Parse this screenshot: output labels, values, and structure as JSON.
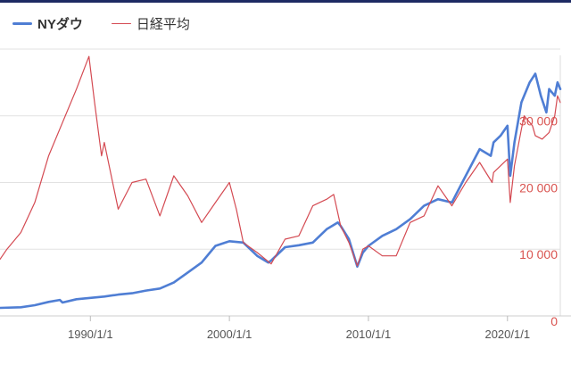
{
  "colors": {
    "nydow": "#4f7ed4",
    "nikkei": "#d44a52",
    "axis_right": "#d9534f",
    "grid": "#e2e2e2"
  },
  "chart_data": {
    "type": "line",
    "title": "",
    "xlabel": "",
    "ylabel": "",
    "xlim": [
      1983.5,
      2023.8
    ],
    "ylim": [
      0,
      42000
    ],
    "grid": true,
    "legend_position": "top-left",
    "x_ticks": [
      {
        "label": "1990/1/1",
        "x": 1990
      },
      {
        "label": "2000/1/1",
        "x": 2000
      },
      {
        "label": "2010/1/1",
        "x": 2010
      },
      {
        "label": "2020/1/1",
        "x": 2020
      }
    ],
    "y_ticks": [
      {
        "label": "0",
        "y": 0
      },
      {
        "label": "10 000",
        "y": 10000
      },
      {
        "label": "20 000",
        "y": 20000
      },
      {
        "label": "30 000",
        "y": 30000
      }
    ],
    "series": [
      {
        "name": "NYダウ",
        "color": "#4f7ed4",
        "points": [
          [
            1983.5,
            1200
          ],
          [
            1985,
            1300
          ],
          [
            1986,
            1600
          ],
          [
            1987,
            2100
          ],
          [
            1987.8,
            2400
          ],
          [
            1988,
            2000
          ],
          [
            1989,
            2500
          ],
          [
            1990,
            2700
          ],
          [
            1991,
            2900
          ],
          [
            1992,
            3200
          ],
          [
            1993,
            3400
          ],
          [
            1994,
            3800
          ],
          [
            1995,
            4100
          ],
          [
            1996,
            5000
          ],
          [
            1997,
            6500
          ],
          [
            1998,
            8000
          ],
          [
            1999,
            10500
          ],
          [
            2000,
            11200
          ],
          [
            2001,
            11000
          ],
          [
            2002,
            9000
          ],
          [
            2002.8,
            8000
          ],
          [
            2003,
            8300
          ],
          [
            2004,
            10300
          ],
          [
            2005,
            10600
          ],
          [
            2006,
            11000
          ],
          [
            2007,
            13000
          ],
          [
            2007.8,
            14000
          ],
          [
            2008,
            13500
          ],
          [
            2008.6,
            11500
          ],
          [
            2009.2,
            7400
          ],
          [
            2009.6,
            9500
          ],
          [
            2010,
            10500
          ],
          [
            2011,
            12000
          ],
          [
            2012,
            13000
          ],
          [
            2013,
            14500
          ],
          [
            2014,
            16500
          ],
          [
            2015,
            17500
          ],
          [
            2016,
            17000
          ],
          [
            2017,
            21000
          ],
          [
            2018,
            25000
          ],
          [
            2018.8,
            24000
          ],
          [
            2019,
            26000
          ],
          [
            2019.5,
            27000
          ],
          [
            2020,
            28500
          ],
          [
            2020.2,
            21000
          ],
          [
            2020.5,
            26000
          ],
          [
            2021,
            32000
          ],
          [
            2021.6,
            35000
          ],
          [
            2022,
            36300
          ],
          [
            2022.4,
            33000
          ],
          [
            2022.8,
            30500
          ],
          [
            2023,
            34000
          ],
          [
            2023.4,
            33000
          ],
          [
            2023.6,
            35000
          ],
          [
            2023.8,
            34000
          ]
        ]
      },
      {
        "name": "日経平均",
        "color": "#d44a52",
        "points": [
          [
            1983.5,
            8500
          ],
          [
            1984,
            10000
          ],
          [
            1985,
            12500
          ],
          [
            1986,
            17000
          ],
          [
            1987,
            24000
          ],
          [
            1988,
            29000
          ],
          [
            1989,
            34000
          ],
          [
            1989.9,
            38900
          ],
          [
            1990.3,
            32000
          ],
          [
            1990.8,
            24000
          ],
          [
            1991,
            26000
          ],
          [
            1992,
            16000
          ],
          [
            1993,
            20000
          ],
          [
            1994,
            20500
          ],
          [
            1995,
            15000
          ],
          [
            1996,
            21000
          ],
          [
            1997,
            18000
          ],
          [
            1998,
            14000
          ],
          [
            1999,
            17000
          ],
          [
            2000,
            20000
          ],
          [
            2000.5,
            16000
          ],
          [
            2001,
            11000
          ],
          [
            2002,
            9500
          ],
          [
            2003,
            7800
          ],
          [
            2004,
            11500
          ],
          [
            2005,
            12000
          ],
          [
            2006,
            16500
          ],
          [
            2007,
            17500
          ],
          [
            2007.5,
            18200
          ],
          [
            2008,
            13500
          ],
          [
            2008.6,
            11000
          ],
          [
            2009.2,
            7500
          ],
          [
            2009.6,
            10000
          ],
          [
            2010,
            10500
          ],
          [
            2011,
            9000
          ],
          [
            2012,
            9000
          ],
          [
            2013,
            14000
          ],
          [
            2014,
            15000
          ],
          [
            2015,
            19500
          ],
          [
            2016,
            16500
          ],
          [
            2017,
            20000
          ],
          [
            2018,
            23000
          ],
          [
            2018.9,
            20000
          ],
          [
            2019,
            21500
          ],
          [
            2020,
            23500
          ],
          [
            2020.2,
            17000
          ],
          [
            2020.5,
            22500
          ],
          [
            2021,
            28000
          ],
          [
            2021.2,
            30000
          ],
          [
            2021.8,
            28500
          ],
          [
            2022,
            27000
          ],
          [
            2022.5,
            26500
          ],
          [
            2023,
            27500
          ],
          [
            2023.4,
            30000
          ],
          [
            2023.6,
            33000
          ],
          [
            2023.8,
            32000
          ]
        ]
      }
    ]
  }
}
